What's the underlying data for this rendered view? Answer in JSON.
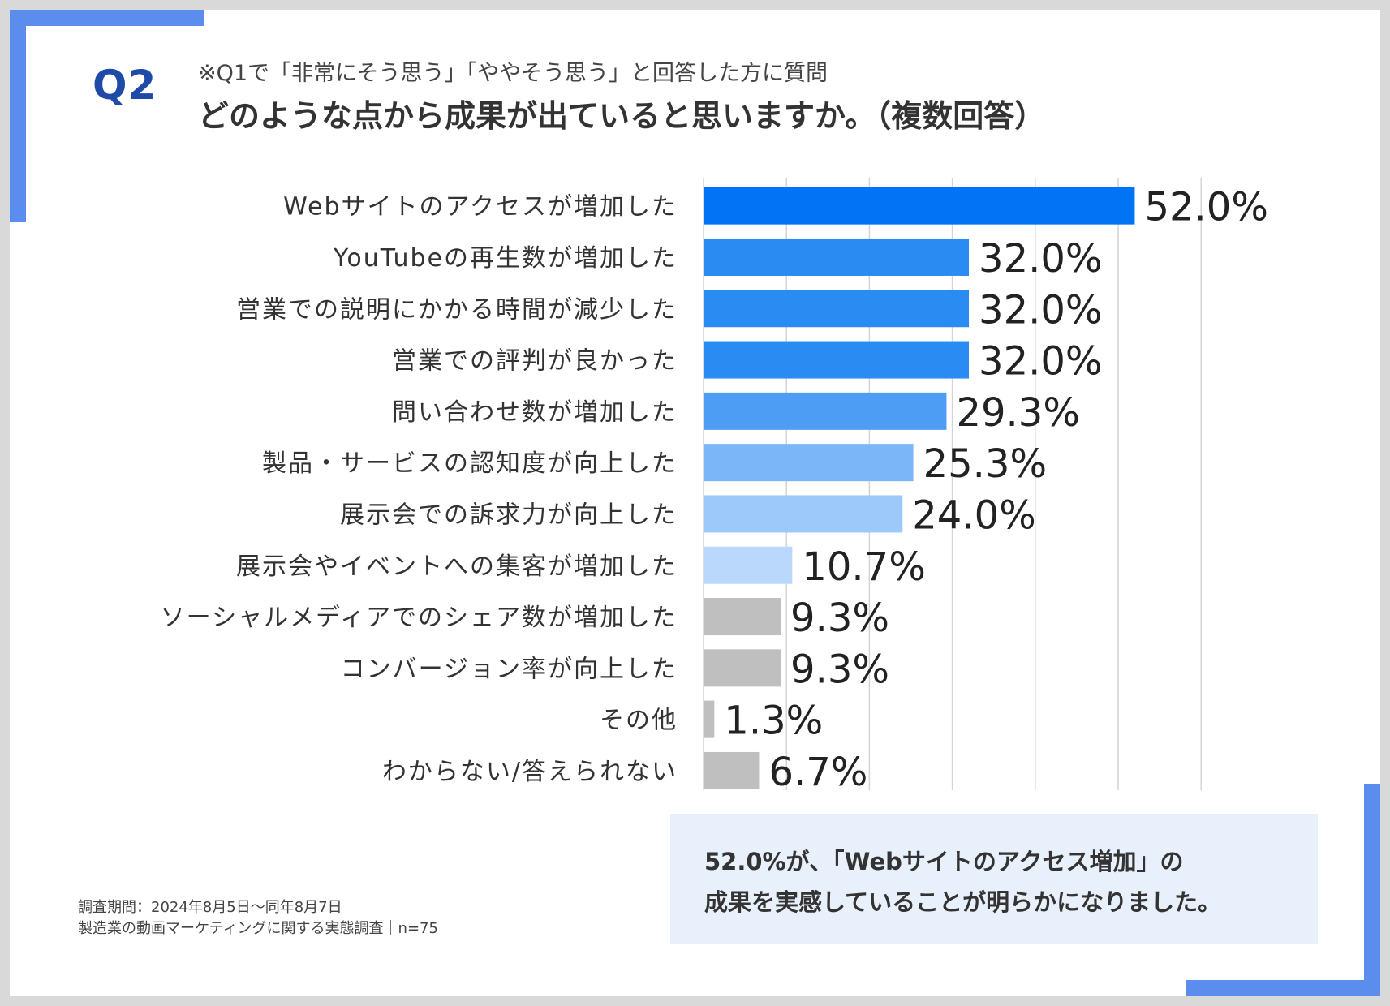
{
  "question": {
    "number": "Q2",
    "subtitle": "※Q1で「非常にそう思う」「ややそう思う」と回答した方に質問",
    "title": "どのような点から成果が出ていると思いますか。（複数回答）"
  },
  "chart_data": {
    "type": "bar",
    "orientation": "horizontal",
    "title": "どのような点から成果が出ていると思いますか。（複数回答）",
    "xlabel": "",
    "ylabel": "",
    "xlim": [
      0,
      60
    ],
    "grid": true,
    "categories": [
      "Webサイトのアクセスが増加した",
      "YouTubeの再生数が増加した",
      "営業での説明にかかる時間が減少した",
      "営業での評判が良かった",
      "問い合わせ数が増加した",
      "製品・サービスの認知度が向上した",
      "展示会での訴求力が向上した",
      "展示会やイベントへの集客が増加した",
      "ソーシャルメディアでのシェア数が増加した",
      "コンバージョン率が向上した",
      "その他",
      "わからない/答えられない"
    ],
    "values": [
      52.0,
      32.0,
      32.0,
      32.0,
      29.3,
      25.3,
      24.0,
      10.7,
      9.3,
      9.3,
      1.3,
      6.7
    ],
    "value_labels": [
      "52.0%",
      "32.0%",
      "32.0%",
      "32.0%",
      "29.3%",
      "25.3%",
      "24.0%",
      "10.7%",
      "9.3%",
      "9.3%",
      "1.3%",
      "6.7%"
    ],
    "bar_colors": [
      "#0074f5",
      "#2a8bf2",
      "#2a8bf2",
      "#2a8bf2",
      "#4d9df5",
      "#7ab6f8",
      "#9cc9fa",
      "#b9d8fc",
      "#bfbfbf",
      "#bfbfbf",
      "#bfbfbf",
      "#bfbfbf"
    ]
  },
  "summary": {
    "line1": "52.0%が、「Webサイトのアクセス増加」の",
    "line2": "成果を実感していることが明らかになりました。"
  },
  "footnote": {
    "period": "調査期間：2024年8月5日～同年8月7日",
    "survey": "製造業の動画マーケティングに関する実態調査｜n=75"
  },
  "colors": {
    "accent": "#5b8def",
    "question_number": "#1f4aa8",
    "summary_bg": "#e8f0fc",
    "grid": "#d4d4d4"
  }
}
